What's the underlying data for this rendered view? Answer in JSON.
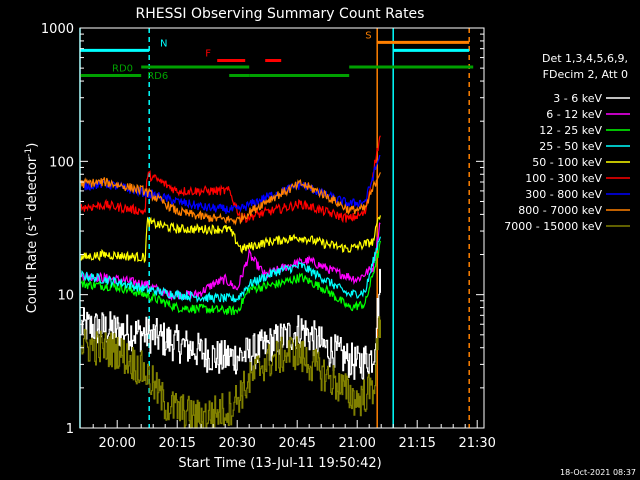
{
  "chart_data": {
    "type": "line",
    "title": "RHESSI Observing Summary Count Rates",
    "xlabel": "Start Time (13-Jul-11 19:50:42)",
    "ylabel": "Count Rate (s⁻¹ detector⁻¹)",
    "ylabel_parts": {
      "base": "Count Rate (s",
      "sup1": "-1",
      "mid": " detector",
      "sup2": "-1",
      "end": ")"
    },
    "yscale": "log",
    "ylim": [
      1,
      1000
    ],
    "xlim": [
      "19:50:42",
      "21:31:42"
    ],
    "x_ticks": [
      "20:00",
      "20:15",
      "20:30",
      "20:45",
      "21:00",
      "21:15",
      "21:30"
    ],
    "y_ticks": [
      "1",
      "10",
      "100",
      "1000"
    ],
    "legend_header": [
      "Det 1,3,4,5,6,9,",
      "FDecim 2, Att 0"
    ],
    "legend_position": "right",
    "timestamp": "18-Oct-2021 08:37",
    "series": [
      {
        "name": "3 - 6 keV",
        "color": "#ffffff",
        "points": [
          [
            "19:51",
            5.8
          ],
          [
            "20:00",
            5.4
          ],
          [
            "20:08",
            5.0
          ],
          [
            "20:18",
            4.0
          ],
          [
            "20:26",
            3.3
          ],
          [
            "20:33",
            3.6
          ],
          [
            "20:40",
            4.5
          ],
          [
            "20:46",
            5.5
          ],
          [
            "20:52",
            4.0
          ],
          [
            "21:00",
            3.0
          ],
          [
            "21:04",
            3.5
          ],
          [
            "21:06",
            16
          ]
        ]
      },
      {
        "name": "6 - 12 keV",
        "color": "#ff00ff",
        "points": [
          [
            "19:51",
            14
          ],
          [
            "20:00",
            13
          ],
          [
            "20:07",
            12
          ],
          [
            "20:13",
            10
          ],
          [
            "20:20",
            10
          ],
          [
            "20:24",
            12
          ],
          [
            "20:27",
            13
          ],
          [
            "20:30",
            11
          ],
          [
            "20:33",
            20
          ],
          [
            "20:37",
            14
          ],
          [
            "20:44",
            17
          ],
          [
            "20:48",
            18
          ],
          [
            "20:54",
            15
          ],
          [
            "21:00",
            13
          ],
          [
            "21:04",
            16
          ],
          [
            "21:06",
            40
          ]
        ]
      },
      {
        "name": "12 - 25 keV",
        "color": "#00ff00",
        "points": [
          [
            "19:51",
            12
          ],
          [
            "20:00",
            11.5
          ],
          [
            "20:07",
            10
          ],
          [
            "20:15",
            8
          ],
          [
            "20:22",
            7.8
          ],
          [
            "20:30",
            7.5
          ],
          [
            "20:33",
            11
          ],
          [
            "20:40",
            12
          ],
          [
            "20:46",
            13.5
          ],
          [
            "20:52",
            11
          ],
          [
            "20:58",
            8
          ],
          [
            "21:02",
            8.5
          ],
          [
            "21:06",
            25
          ]
        ]
      },
      {
        "name": "25 - 50 keV",
        "color": "#00ffff",
        "points": [
          [
            "19:51",
            14
          ],
          [
            "20:00",
            12.5
          ],
          [
            "20:07",
            11
          ],
          [
            "20:15",
            10
          ],
          [
            "20:22",
            9.5
          ],
          [
            "20:30",
            9.3
          ],
          [
            "20:33",
            12
          ],
          [
            "20:40",
            15
          ],
          [
            "20:46",
            16.5
          ],
          [
            "20:52",
            13
          ],
          [
            "20:58",
            10
          ],
          [
            "21:02",
            10.5
          ],
          [
            "21:06",
            30
          ]
        ]
      },
      {
        "name": "50 - 100 keV",
        "color": "#ffff00",
        "points": [
          [
            "19:51",
            19
          ],
          [
            "19:57",
            20
          ],
          [
            "20:07",
            19
          ],
          [
            "20:07.5",
            35
          ],
          [
            "20:15",
            31
          ],
          [
            "20:22",
            31
          ],
          [
            "20:28",
            31
          ],
          [
            "20:31",
            22
          ],
          [
            "20:38",
            25
          ],
          [
            "20:46",
            27
          ],
          [
            "20:52",
            24
          ],
          [
            "20:58",
            22
          ],
          [
            "21:04",
            25
          ],
          [
            "21:06",
            45
          ]
        ]
      },
      {
        "name": "100 - 300 keV",
        "color": "#ff0000",
        "points": [
          [
            "19:51",
            45
          ],
          [
            "19:57",
            47
          ],
          [
            "20:07",
            42
          ],
          [
            "20:07.5",
            80
          ],
          [
            "20:15",
            60
          ],
          [
            "20:22",
            60
          ],
          [
            "20:28",
            60
          ],
          [
            "20:31",
            37
          ],
          [
            "20:38",
            42
          ],
          [
            "20:46",
            48
          ],
          [
            "20:52",
            42
          ],
          [
            "20:58",
            37
          ],
          [
            "21:02",
            41
          ],
          [
            "21:06",
            170
          ]
        ]
      },
      {
        "name": "300 - 800 keV",
        "color": "#0000ff",
        "points": [
          [
            "19:51",
            65
          ],
          [
            "19:57",
            68
          ],
          [
            "20:07",
            58
          ],
          [
            "20:15",
            50
          ],
          [
            "20:22",
            45
          ],
          [
            "20:30",
            43
          ],
          [
            "20:38",
            55
          ],
          [
            "20:46",
            67
          ],
          [
            "20:52",
            56
          ],
          [
            "20:58",
            48
          ],
          [
            "21:02",
            50
          ],
          [
            "21:06",
            120
          ]
        ]
      },
      {
        "name": "800 - 7000 keV",
        "color": "#ff8000",
        "points": [
          [
            "19:51",
            68
          ],
          [
            "19:57",
            70
          ],
          [
            "20:07",
            60
          ],
          [
            "20:15",
            42
          ],
          [
            "20:22",
            38
          ],
          [
            "20:30",
            36
          ],
          [
            "20:38",
            52
          ],
          [
            "20:46",
            68
          ],
          [
            "20:52",
            56
          ],
          [
            "20:58",
            43
          ],
          [
            "21:02",
            44
          ],
          [
            "21:06",
            90
          ]
        ]
      },
      {
        "name": "7000 - 15000 keV",
        "color": "#808000",
        "points": [
          [
            "19:51",
            4.2
          ],
          [
            "20:00",
            3.8
          ],
          [
            "20:07",
            2.6
          ],
          [
            "20:12",
            1.5
          ],
          [
            "20:20",
            1.2
          ],
          [
            "20:28",
            1.4
          ],
          [
            "20:36",
            3.0
          ],
          [
            "20:44",
            3.8
          ],
          [
            "20:52",
            2.5
          ],
          [
            "21:00",
            1.6
          ],
          [
            "21:04",
            2.0
          ],
          [
            "21:06",
            8
          ]
        ]
      }
    ],
    "segments": [
      {
        "name": "N",
        "color": "#00ffff",
        "level": 680,
        "ranges": [
          [
            "19:50:42",
            "20:08"
          ],
          [
            "21:09",
            "21:28"
          ]
        ]
      },
      {
        "name": "S",
        "color": "#ff8000",
        "level": 780,
        "ranges": [
          [
            "21:05",
            "21:28"
          ]
        ]
      },
      {
        "name": "F",
        "color": "#ff0000",
        "level": 570,
        "ranges": [
          [
            "20:25",
            "20:32"
          ],
          [
            "20:37",
            "20:41"
          ]
        ]
      },
      {
        "name": "RD0",
        "color": "#00a000",
        "level": 440,
        "ranges": [
          [
            "19:50:42",
            "20:06"
          ],
          [
            "20:28",
            "20:33"
          ],
          [
            "20:33",
            "20:58"
          ]
        ]
      },
      {
        "name": "RD6",
        "color": "#00a000",
        "level": 510,
        "ranges": [
          [
            "20:06",
            "20:33"
          ],
          [
            "20:58",
            "21:29"
          ]
        ]
      }
    ],
    "vertical_markers": [
      {
        "time": "19:50:42",
        "color": "#00ffff",
        "style": "solid"
      },
      {
        "time": "20:08",
        "color": "#00ffff",
        "style": "dashed"
      },
      {
        "time": "21:05",
        "color": "#ff8000",
        "style": "solid"
      },
      {
        "time": "21:09",
        "color": "#00ffff",
        "style": "solid"
      },
      {
        "time": "21:28",
        "color": "#ff8000",
        "style": "dashed"
      }
    ],
    "grid": false
  }
}
